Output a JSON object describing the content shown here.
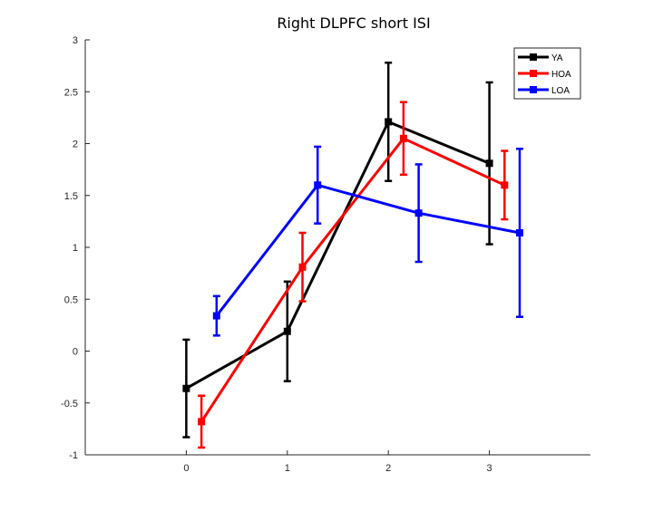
{
  "chart_data": {
    "type": "line",
    "title": "Right DLPFC short ISI",
    "xlabel": "",
    "ylabel": "",
    "xlim": [
      -1,
      4
    ],
    "ylim": [
      -1,
      3
    ],
    "xticks": [
      0,
      1,
      2,
      3
    ],
    "yticks": [
      -1,
      -0.5,
      0,
      0.5,
      1,
      1.5,
      2,
      2.5,
      3
    ],
    "xtick_labels": [
      "0",
      "1",
      "2",
      "3"
    ],
    "ytick_labels": [
      "-1",
      "-0.5",
      "0",
      "0.5",
      "1",
      "1.5",
      "2",
      "2.5",
      "3"
    ],
    "grid": false,
    "legend_position": "top-right",
    "series": [
      {
        "name": "YA",
        "color": "#000000",
        "x": [
          0,
          1,
          2,
          3
        ],
        "y": [
          -0.36,
          0.19,
          2.21,
          1.81
        ],
        "err": [
          0.47,
          0.48,
          0.57,
          0.78
        ]
      },
      {
        "name": "HOA",
        "color": "#ff0000",
        "x": [
          0.15,
          1.15,
          2.15,
          3.15
        ],
        "y": [
          -0.68,
          0.81,
          2.05,
          1.6
        ],
        "err": [
          0.25,
          0.33,
          0.35,
          0.33
        ]
      },
      {
        "name": "LOA",
        "color": "#0000ff",
        "x": [
          0.3,
          1.3,
          2.3,
          3.3
        ],
        "y": [
          0.34,
          1.6,
          1.33,
          1.14
        ],
        "err": [
          0.19,
          0.37,
          0.47,
          0.81
        ]
      }
    ]
  }
}
